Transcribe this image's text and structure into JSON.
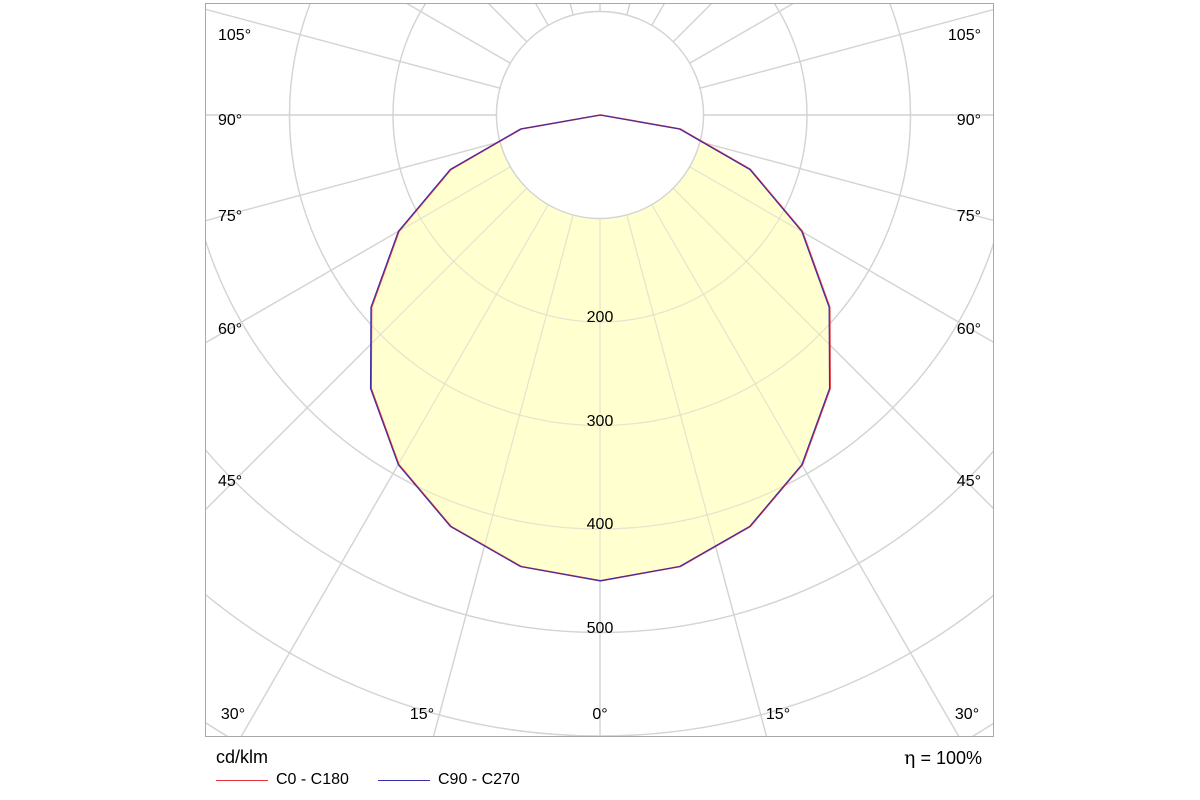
{
  "chart_data": {
    "type": "polar",
    "title": "",
    "unit_label": "cd/klm",
    "efficiency_label": "= 100%",
    "efficiency_symbol": "η",
    "radial_ticks": [
      200,
      300,
      400,
      500
    ],
    "radial_tick_labels": [
      "200",
      "300",
      "400",
      "500"
    ],
    "radial_max": 700,
    "grid": true,
    "angle_tick_values": [
      0,
      15,
      30,
      45,
      60,
      75,
      90,
      105
    ],
    "angle_labels": {
      "left": [
        {
          "angle": 105,
          "text": "105°"
        },
        {
          "angle": 90,
          "text": "90°"
        },
        {
          "angle": 75,
          "text": "75°"
        },
        {
          "angle": 60,
          "text": "60°"
        },
        {
          "angle": 45,
          "text": "45°"
        }
      ],
      "right": [
        {
          "angle": 105,
          "text": "105°"
        },
        {
          "angle": 90,
          "text": "90°"
        },
        {
          "angle": 75,
          "text": "75°"
        },
        {
          "angle": 60,
          "text": "60°"
        },
        {
          "angle": 45,
          "text": "45°"
        }
      ],
      "bottom": [
        {
          "angle": -30,
          "text": "30°"
        },
        {
          "angle": -15,
          "text": "15°"
        },
        {
          "angle": 0,
          "text": "0°"
        },
        {
          "angle": 15,
          "text": "15°"
        },
        {
          "angle": 30,
          "text": "30°"
        }
      ]
    },
    "series": [
      {
        "name": "C0 - C180",
        "color": "#e8303a",
        "angles": [
          0,
          10,
          20,
          30,
          40,
          50,
          60,
          70,
          80,
          90
        ],
        "values": [
          450,
          443,
          423,
          390,
          345,
          289,
          225,
          154,
          78,
          0
        ]
      },
      {
        "name": "C90 - C270",
        "color": "#3a2fa8",
        "angles": [
          0,
          10,
          20,
          30,
          40,
          50,
          60,
          70,
          80,
          90
        ],
        "values": [
          450,
          443,
          423,
          390,
          345,
          289,
          225,
          154,
          78,
          0
        ]
      }
    ],
    "fill_color": "#ffffc8",
    "grid_color": "#d4d4d4"
  }
}
